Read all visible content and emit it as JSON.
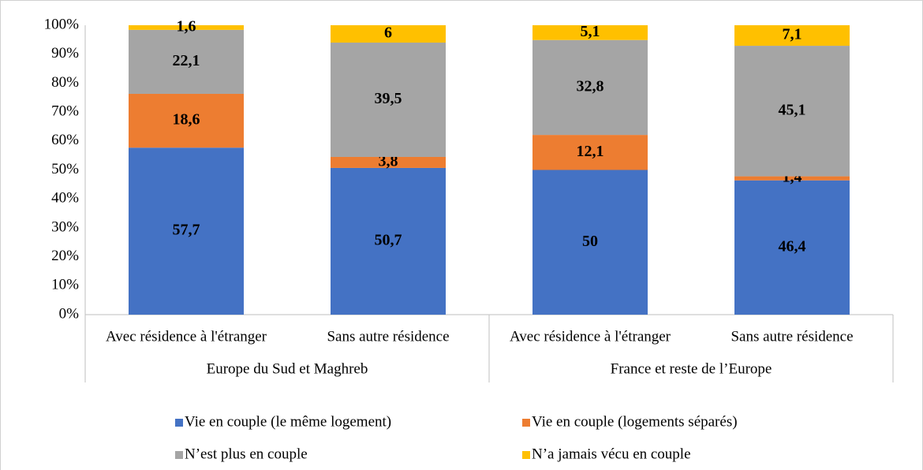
{
  "chart_data": {
    "type": "bar",
    "stacked": true,
    "category_groups": [
      {
        "name": "Europe du Sud et Maghreb",
        "categories": [
          "Avec résidence à l'étranger",
          "Sans autre résidence"
        ]
      },
      {
        "name": "France et reste de l’Europe",
        "categories": [
          "Avec résidence à l'étranger",
          "Sans autre résidence"
        ]
      }
    ],
    "series": [
      {
        "name": "Vie en couple (le même logement)",
        "color": "#4472c4",
        "values": [
          57.7,
          50.7,
          50,
          46.4
        ],
        "value_labels": [
          "57,7",
          "50,7",
          "50",
          "46,4"
        ]
      },
      {
        "name": "Vie en couple (logements séparés)",
        "color": "#ed7d31",
        "values": [
          18.6,
          3.8,
          12.1,
          1.4
        ],
        "value_labels": [
          "18,6",
          "3,8",
          "12,1",
          "1,4"
        ]
      },
      {
        "name": "N’est plus en couple",
        "color": "#a5a5a5",
        "values": [
          22.1,
          39.5,
          32.8,
          45.1
        ],
        "value_labels": [
          "22,1",
          "39,5",
          "32,8",
          "45,1"
        ]
      },
      {
        "name": "N’a jamais vécu en couple",
        "color": "#ffc000",
        "values": [
          1.6,
          6,
          5.1,
          7.1
        ],
        "value_labels": [
          "1,6",
          "6",
          "5,1",
          "7,1"
        ]
      }
    ],
    "ylim": [
      0,
      100
    ],
    "yticks": [
      {
        "value": 0,
        "label": "0%"
      },
      {
        "value": 10,
        "label": "10%"
      },
      {
        "value": 20,
        "label": "20%"
      },
      {
        "value": 30,
        "label": "30%"
      },
      {
        "value": 40,
        "label": "40%"
      },
      {
        "value": 50,
        "label": "50%"
      },
      {
        "value": 60,
        "label": "60%"
      },
      {
        "value": 70,
        "label": "70%"
      },
      {
        "value": 80,
        "label": "80%"
      },
      {
        "value": 90,
        "label": "90%"
      },
      {
        "value": 100,
        "label": "100%"
      }
    ],
    "grid": false,
    "legend": "bottom"
  }
}
